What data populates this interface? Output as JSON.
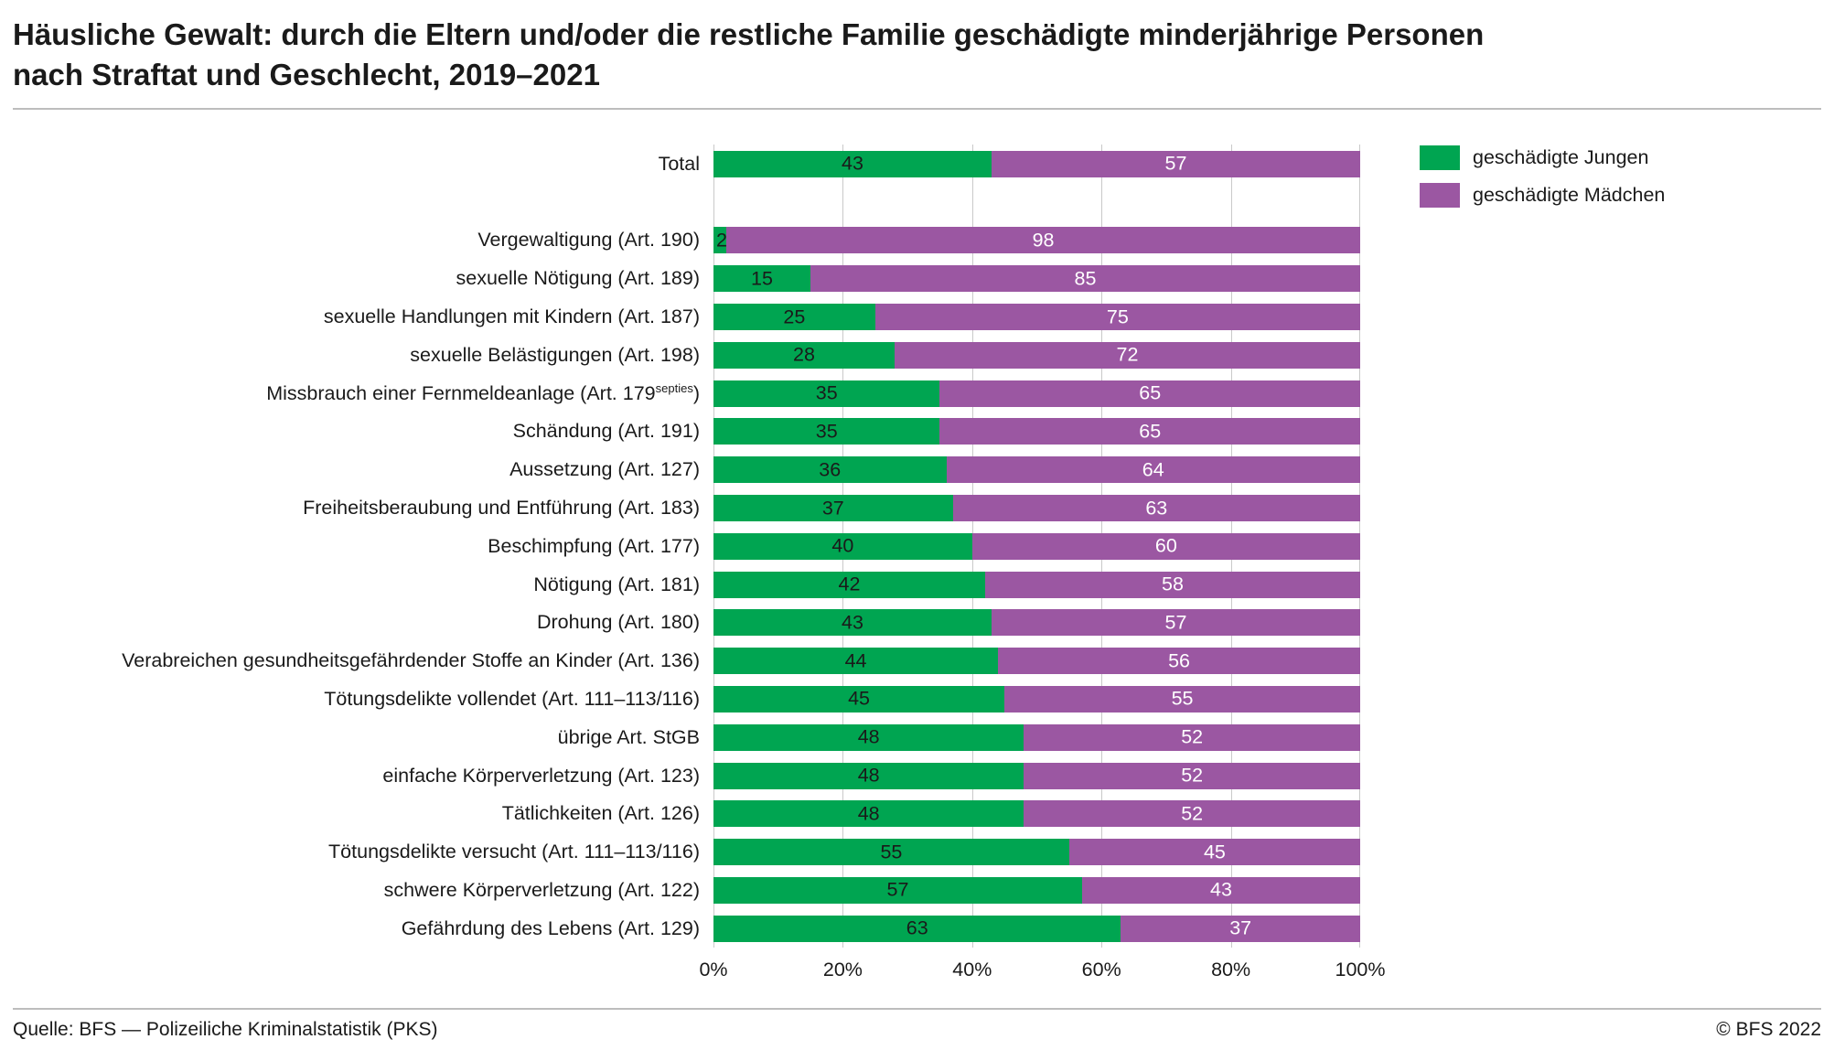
{
  "header": {
    "title_line1": "Häusliche Gewalt: durch die Eltern und/oder die restliche Familie geschädigte minderjährige Personen",
    "title_line2": "nach Straftat und Geschlecht, 2019–2021"
  },
  "legend": {
    "items": [
      {
        "label": "geschädigte Jungen",
        "color": "#00a551"
      },
      {
        "label": "geschädigte Mädchen",
        "color": "#9b57a2"
      }
    ]
  },
  "footer": {
    "source": "Quelle: BFS — Polizeiliche Kriminalstatistik (PKS)",
    "copyright": "© BFS 2022"
  },
  "chart_data": {
    "type": "bar",
    "orientation": "horizontal",
    "stacked": true,
    "unit": "%",
    "xlim": [
      0,
      100
    ],
    "x_ticks": [
      "0%",
      "20%",
      "40%",
      "60%",
      "80%",
      "100%"
    ],
    "grid": true,
    "legend_position": "top-right",
    "series_names": [
      "geschädigte Jungen",
      "geschädigte Mädchen"
    ],
    "colors": {
      "jungen": "#00a551",
      "maedchen": "#9b57a2"
    },
    "rows": [
      {
        "label": "Total",
        "values": [
          43,
          57
        ]
      },
      {
        "spacer": true
      },
      {
        "label": "Vergewaltigung (Art. 190)",
        "values": [
          2,
          98
        ]
      },
      {
        "label": "sexuelle Nötigung (Art. 189)",
        "values": [
          15,
          85
        ]
      },
      {
        "label": "sexuelle Handlungen mit Kindern (Art. 187)",
        "values": [
          25,
          75
        ]
      },
      {
        "label": "sexuelle Belästigungen (Art. 198)",
        "values": [
          28,
          72
        ]
      },
      {
        "label": "Missbrauch einer Fernmeldeanlage (Art. 179",
        "sup": "septies",
        "label_end": ")",
        "values": [
          35,
          65
        ]
      },
      {
        "label": "Schändung (Art. 191)",
        "values": [
          35,
          65
        ]
      },
      {
        "label": "Aussetzung (Art. 127)",
        "values": [
          36,
          64
        ]
      },
      {
        "label": "Freiheitsberaubung und Entführung (Art. 183)",
        "values": [
          37,
          63
        ]
      },
      {
        "label": "Beschimpfung (Art. 177)",
        "values": [
          40,
          60
        ]
      },
      {
        "label": "Nötigung (Art. 181)",
        "values": [
          42,
          58
        ]
      },
      {
        "label": "Drohung (Art. 180)",
        "values": [
          43,
          57
        ]
      },
      {
        "label": "Verabreichen gesundheitsgefährdender Stoffe an Kinder (Art. 136)",
        "values": [
          44,
          56
        ]
      },
      {
        "label": "Tötungsdelikte vollendet (Art. 111–113/116)",
        "values": [
          45,
          55
        ]
      },
      {
        "label": "übrige Art. StGB",
        "values": [
          48,
          52
        ]
      },
      {
        "label": "einfache Körperverletzung (Art. 123)",
        "values": [
          48,
          52
        ]
      },
      {
        "label": "Tätlichkeiten (Art. 126)",
        "values": [
          48,
          52
        ]
      },
      {
        "label": "Tötungsdelikte versucht (Art. 111–113/116)",
        "values": [
          55,
          45
        ]
      },
      {
        "label": "schwere Körperverletzung (Art. 122)",
        "values": [
          57,
          43
        ]
      },
      {
        "label": "Gefährdung des Lebens (Art. 129)",
        "values": [
          63,
          37
        ]
      }
    ]
  }
}
